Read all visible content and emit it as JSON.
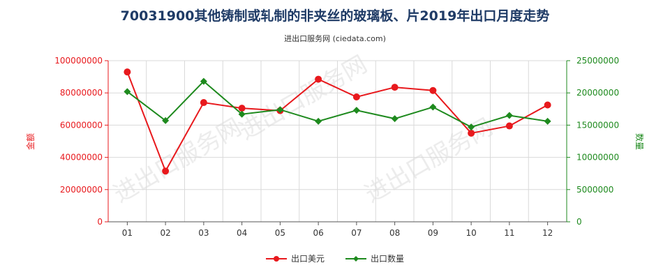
{
  "title": "70031900其他铸制或轧制的非夹丝的玻璃板、片2019年出口月度走势",
  "subtitle": "进出口服务网 (ciedata.com)",
  "watermark": "进出口服务网",
  "colors": {
    "amount": "#e8191d",
    "quantity": "#1e8a1e",
    "grid": "#d9d9d9",
    "axis": "#555555"
  },
  "chart_data": {
    "type": "line",
    "categories": [
      "01",
      "02",
      "03",
      "04",
      "05",
      "06",
      "07",
      "08",
      "09",
      "10",
      "11",
      "12"
    ],
    "ylabel_left": "金额",
    "ylabel_right": "数量",
    "ylim_left": [
      0,
      100000000
    ],
    "ylim_right": [
      0,
      25000000
    ],
    "yticks_left": [
      "0",
      "20000000",
      "40000000",
      "60000000",
      "80000000",
      "100000000"
    ],
    "yticks_right": [
      "0",
      "5000000",
      "10000000",
      "15000000",
      "20000000",
      "25000000"
    ],
    "grid": true,
    "legend_position": "bottom",
    "series": [
      {
        "name": "出口美元",
        "axis": "left",
        "color": "#e8191d",
        "values": [
          93000000,
          31500000,
          74000000,
          70500000,
          69000000,
          88500000,
          77500000,
          83500000,
          81500000,
          55000000,
          59500000,
          72500000
        ]
      },
      {
        "name": "出口数量",
        "axis": "right",
        "color": "#1e8a1e",
        "values": [
          20200000,
          15700000,
          21800000,
          16700000,
          17400000,
          15600000,
          17300000,
          16000000,
          17800000,
          14700000,
          16500000,
          15600000
        ]
      }
    ]
  }
}
